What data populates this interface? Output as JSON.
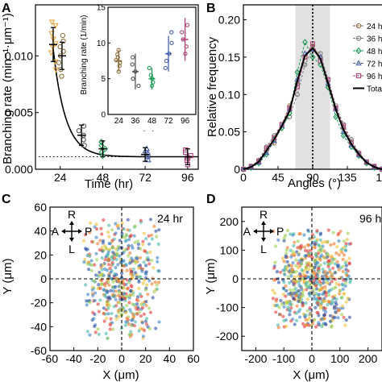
{
  "panels": {
    "A": {
      "letter": "A",
      "chart_data": {
        "type": "scatter",
        "xlabel": "Time  (hr)",
        "ylabel": "Branching rate (min⁻¹·μm⁻¹)",
        "xticks": [
          "24",
          "48",
          "72",
          "96"
        ],
        "yticks": [
          "0.000",
          "0.005",
          "0.010"
        ],
        "xlim": [
          10,
          102
        ],
        "ylim": [
          0,
          0.0145
        ],
        "groups": [
          {
            "time": 20,
            "mean": 0.011,
            "sd": 0.0015,
            "color": "#e8a33a",
            "marker": "triangle-down",
            "points": [
              0.0088,
              0.0095,
              0.0103,
              0.0108,
              0.0111,
              0.0115,
              0.012,
              0.0127,
              0.013
            ]
          },
          {
            "time": 25,
            "mean": 0.01,
            "sd": 0.0012,
            "color": "#8b6b3a",
            "marker": "circle",
            "points": [
              0.0082,
              0.0088,
              0.0094,
              0.01,
              0.0104,
              0.0108,
              0.0113,
              0.0118
            ]
          },
          {
            "time": 36,
            "mean": 0.003,
            "sd": 0.0009,
            "color": "#555555",
            "marker": "circle",
            "points": [
              0.0021,
              0.0026,
              0.003,
              0.0034,
              0.0038
            ]
          },
          {
            "time": 48,
            "mean": 0.0018,
            "sd": 0.0007,
            "color": "#1f9a55",
            "marker": "diamond",
            "points": [
              0.0012,
              0.0015,
              0.0018,
              0.0021,
              0.0024
            ]
          },
          {
            "time": 72,
            "mean": 0.0013,
            "sd": 0.0006,
            "color": "#4a63b0",
            "marker": "triangle-up",
            "points": [
              0.0008,
              0.0011,
              0.0014,
              0.0016,
              0.0018
            ]
          },
          {
            "time": 96,
            "mean": 0.0011,
            "sd": 0.0007,
            "color": "#b0457c",
            "marker": "square",
            "points": [
              0.0004,
              0.0008,
              0.001,
              0.0012,
              0.0015,
              0.0017
            ]
          }
        ],
        "fit": {
          "asymptote": 0.0011,
          "amplitude": 0.0095,
          "decay_hr": 7,
          "t0": 20
        },
        "baseline": 0.0011,
        "inset": {
          "ylabel": "Branching rate (1/min)",
          "xlabel": "Time (hr)",
          "categories": [
            "24",
            "36",
            "48",
            "72",
            "96"
          ],
          "yticks": [
            "0",
            "5",
            "10",
            "15"
          ],
          "ylim": [
            0,
            15
          ],
          "means": [
            7.5,
            6,
            5,
            8.5,
            10.5
          ],
          "sd": [
            1.5,
            2.5,
            1.5,
            2.5,
            3
          ],
          "colors": [
            "#8b6b3a",
            "#555555",
            "#1f9a55",
            "#4a63b0",
            "#b0457c"
          ],
          "points": [
            [
              6,
              6.8,
              7.2,
              7.6,
              8,
              8.4,
              9
            ],
            [
              4,
              5,
              6,
              7,
              8
            ],
            [
              4,
              4.5,
              5,
              5.5,
              6.5
            ],
            [
              6.5,
              7.5,
              8.5,
              10,
              11.5
            ],
            [
              8.5,
              9.5,
              10.5,
              11.5,
              12.5
            ]
          ]
        }
      }
    },
    "B": {
      "letter": "B",
      "chart_data": {
        "type": "line",
        "xlabel": "Angles (°)",
        "ylabel": "Relative frequency",
        "xticks": [
          "0",
          "45",
          "90",
          "135",
          "18"
        ],
        "yticks": [
          "0",
          "0.05",
          "0.10",
          "0.15",
          "0.20"
        ],
        "xlim": [
          0,
          180
        ],
        "ylim": [
          0,
          0.22
        ],
        "shaded_range": [
          67.5,
          112.5
        ],
        "vline": 90,
        "x": [
          0,
          10,
          20,
          30,
          40,
          50,
          60,
          70,
          80,
          90,
          100,
          110,
          120,
          130,
          140,
          150,
          160,
          170,
          180
        ],
        "series": [
          {
            "name": "24 hr",
            "color": "#8b6b3a",
            "marker": "circle",
            "values": [
              0,
              0.003,
              0.01,
              0.025,
              0.035,
              0.06,
              0.085,
              0.115,
              0.15,
              0.165,
              0.15,
              0.11,
              0.08,
              0.055,
              0.035,
              0.02,
              0.008,
              0.003,
              0
            ]
          },
          {
            "name": "36 hr",
            "color": "#777777",
            "marker": "circle",
            "values": [
              0,
              0.004,
              0.012,
              0.03,
              0.045,
              0.06,
              0.07,
              0.1,
              0.14,
              0.16,
              0.155,
              0.12,
              0.085,
              0.06,
              0.04,
              0.022,
              0.01,
              0.004,
              0
            ]
          },
          {
            "name": "48 hr",
            "color": "#1f9a55",
            "marker": "diamond",
            "values": [
              0,
              0.002,
              0.008,
              0.02,
              0.04,
              0.055,
              0.075,
              0.13,
              0.17,
              0.15,
              0.14,
              0.11,
              0.07,
              0.045,
              0.03,
              0.018,
              0.008,
              0.002,
              0
            ]
          },
          {
            "name": "72 hr",
            "color": "#4a63b0",
            "marker": "triangle-up",
            "values": [
              0,
              0.003,
              0.009,
              0.022,
              0.038,
              0.058,
              0.08,
              0.12,
              0.155,
              0.16,
              0.15,
              0.115,
              0.08,
              0.05,
              0.032,
              0.019,
              0.009,
              0.003,
              0
            ]
          },
          {
            "name": "96 hr",
            "color": "#b0457c",
            "marker": "square",
            "values": [
              0,
              0.004,
              0.011,
              0.028,
              0.042,
              0.06,
              0.082,
              0.11,
              0.15,
              0.168,
              0.145,
              0.12,
              0.082,
              0.058,
              0.036,
              0.021,
              0.01,
              0.004,
              0
            ]
          },
          {
            "name": "Tota",
            "color": "#000000",
            "marker": "none",
            "values": [
              0,
              0.003,
              0.01,
              0.025,
              0.04,
              0.058,
              0.078,
              0.118,
              0.152,
              0.162,
              0.148,
              0.115,
              0.08,
              0.053,
              0.034,
              0.02,
              0.009,
              0.003,
              0
            ]
          }
        ]
      }
    },
    "C": {
      "letter": "C",
      "label": "24 hr",
      "compass": {
        "up": "R",
        "left": "A",
        "right": "P",
        "down": "L"
      },
      "chart_data": {
        "type": "scatter",
        "xlabel": "X (μm)",
        "ylabel": "Y (μm)",
        "xticks": [
          "-60",
          "-40",
          "-20",
          "0",
          "20",
          "40",
          "60"
        ],
        "yticks": [
          "-60",
          "-40",
          "-20",
          "0",
          "20",
          "40",
          "60"
        ],
        "xlim": [
          -60,
          60
        ],
        "ylim": [
          -60,
          60
        ],
        "cloud": {
          "count": 650,
          "x_spread": 20,
          "y_spread": 30,
          "x_max": 32,
          "y_max": 50,
          "seed": 7
        },
        "palette": [
          "#e23b3b",
          "#f07b2a",
          "#f2c230",
          "#9ccf4b",
          "#46b9a6",
          "#3b82c4",
          "#2c4ea1"
        ]
      }
    },
    "D": {
      "letter": "D",
      "label": "96 hr",
      "compass": {
        "up": "R",
        "left": "A",
        "right": "P",
        "down": "L"
      },
      "chart_data": {
        "type": "scatter",
        "xlabel": "X (μm)",
        "ylabel": "Y (μm)",
        "xticks": [
          "-200",
          "-100",
          "0",
          "100",
          "200"
        ],
        "yticks": [
          "-200",
          "-100",
          "0",
          "100",
          "200"
        ],
        "xlim": [
          -250,
          250
        ],
        "ylim": [
          -250,
          250
        ],
        "cloud": {
          "count": 750,
          "x_spread": 80,
          "y_spread": 105,
          "x_max": 140,
          "y_max": 170,
          "seed": 13
        },
        "palette": [
          "#e23b3b",
          "#f07b2a",
          "#f2c230",
          "#9ccf4b",
          "#46b9a6",
          "#3b82c4",
          "#2c4ea1"
        ]
      }
    }
  }
}
